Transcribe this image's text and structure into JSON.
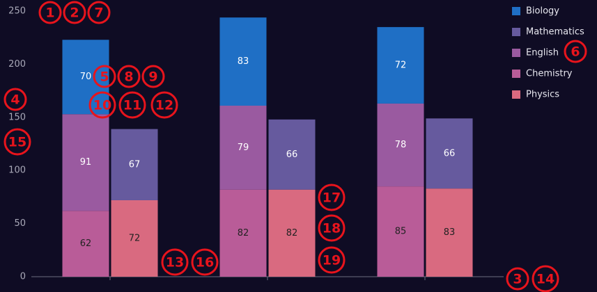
{
  "chart_data": {
    "type": "stacked-bar",
    "categories": [
      null,
      null,
      null
    ],
    "series": [
      {
        "name": "Biology",
        "color": "#1f6fc5",
        "stack": "left",
        "values": [
          70,
          83,
          72
        ]
      },
      {
        "name": "Mathematics",
        "color": "#665a9e",
        "stack": "right",
        "values": [
          67,
          66,
          66
        ]
      },
      {
        "name": "English",
        "color": "#9a5aa0",
        "stack": "left",
        "values": [
          91,
          79,
          78
        ]
      },
      {
        "name": "Chemistry",
        "color": "#b95c98",
        "stack": "left",
        "values": [
          62,
          82,
          85
        ]
      },
      {
        "name": "Physics",
        "color": "#d96a80",
        "stack": "right",
        "values": [
          72,
          82,
          83
        ]
      }
    ],
    "ylim": [
      0,
      250
    ],
    "yticks": [
      0,
      50,
      100,
      150,
      200,
      250
    ],
    "grid": false,
    "legend": "top-right"
  },
  "annotations": [
    "1",
    "2",
    "3",
    "4",
    "5",
    "6",
    "7",
    "8",
    "9",
    "10",
    "11",
    "12",
    "13",
    "14",
    "15",
    "16",
    "17",
    "18",
    "19"
  ]
}
